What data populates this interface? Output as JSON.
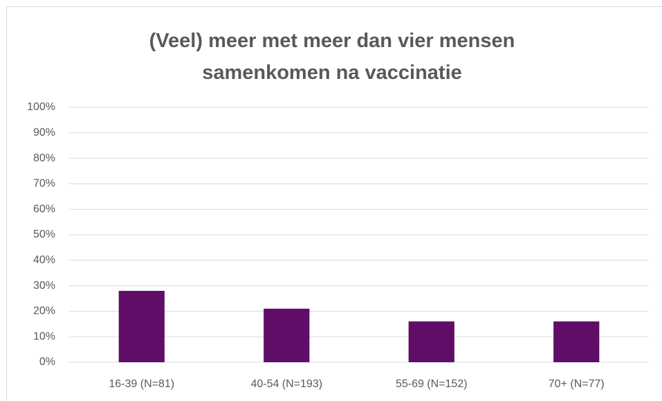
{
  "chart_data": {
    "type": "bar",
    "title": "(Veel) meer met meer dan vier mensen samenkomen na vaccinatie",
    "categories": [
      "16-39 (N=81)",
      "40-54 (N=193)",
      "55-69 (N=152)",
      "70+ (N=77)"
    ],
    "values": [
      28,
      21,
      16,
      16
    ],
    "color": "#5f0d66",
    "ylim": [
      0,
      100
    ],
    "yticks": [
      {
        "value": 0,
        "label": "0%"
      },
      {
        "value": 10,
        "label": "10%"
      },
      {
        "value": 20,
        "label": "20%"
      },
      {
        "value": 30,
        "label": "30%"
      },
      {
        "value": 40,
        "label": "40%"
      },
      {
        "value": 50,
        "label": "50%"
      },
      {
        "value": 60,
        "label": "60%"
      },
      {
        "value": 70,
        "label": "70%"
      },
      {
        "value": 80,
        "label": "80%"
      },
      {
        "value": 90,
        "label": "90%"
      },
      {
        "value": 100,
        "label": "100%"
      }
    ],
    "grid": true
  }
}
